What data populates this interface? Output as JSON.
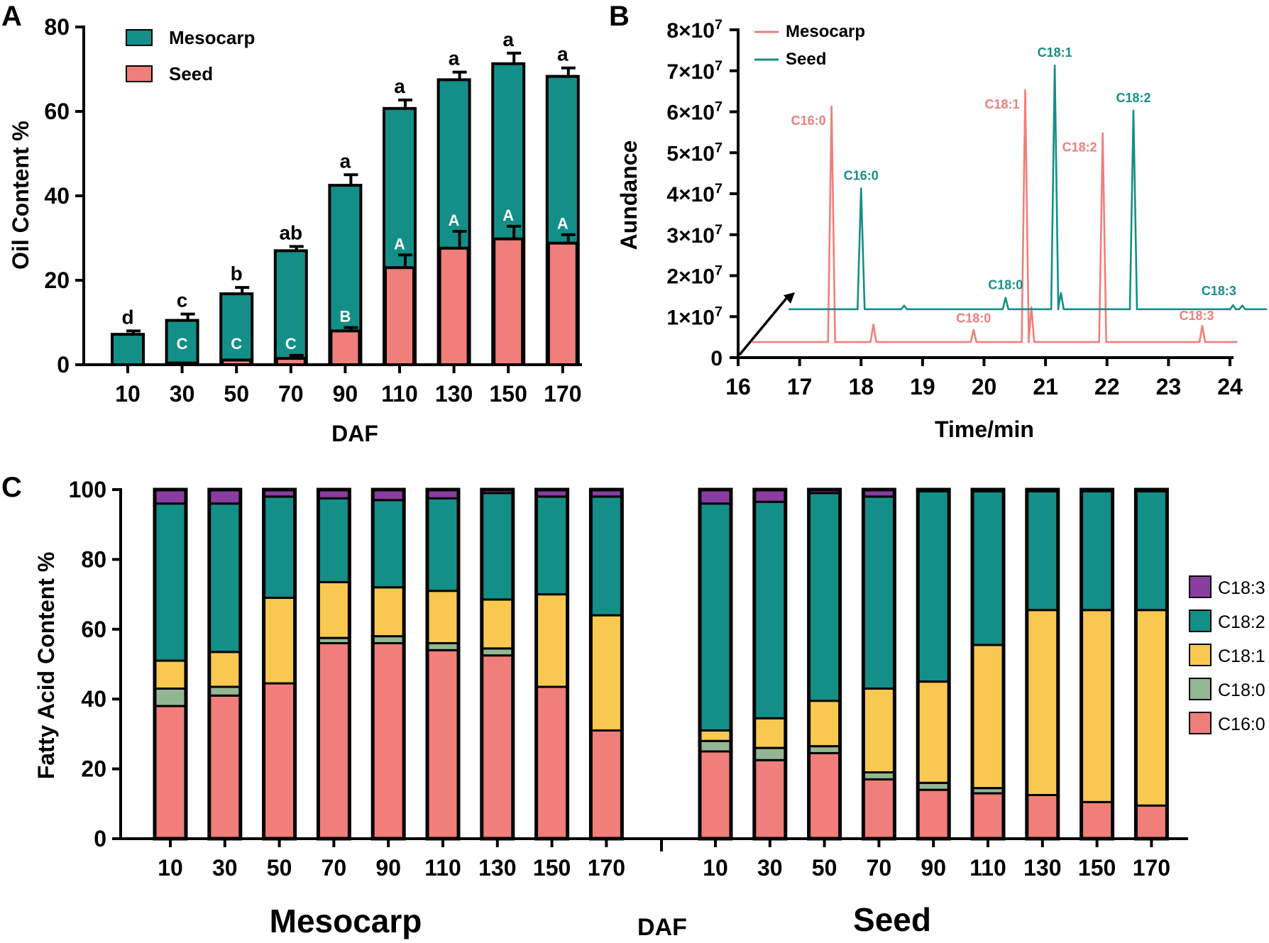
{
  "colors": {
    "mesocarp": "#138f88",
    "seed": "#f07e7b",
    "C18:3": "#8a3da0",
    "C18:2": "#138f88",
    "C18:1": "#f9c851",
    "C18:0": "#93b793",
    "C16:0": "#f07e7b",
    "outline": "#000000"
  },
  "chart_data": [
    {
      "panel": "A",
      "type": "bar",
      "title": "",
      "xlabel": "DAF",
      "ylabel": "Oil Content %",
      "ylim": [
        0,
        80
      ],
      "yticks": [
        "0",
        "20",
        "40",
        "60",
        "80"
      ],
      "categories": [
        "10",
        "30",
        "50",
        "70",
        "90",
        "110",
        "130",
        "150",
        "170"
      ],
      "legend_position": "top-left",
      "series": [
        {
          "name": "Mesocarp",
          "values": [
            7.2,
            10.5,
            16.8,
            27.0,
            42.5,
            60.7,
            67.5,
            71.3,
            68.3
          ],
          "errors": [
            0.8,
            1.5,
            1.5,
            1.0,
            2.5,
            2.0,
            1.8,
            2.5,
            2.0
          ],
          "letters": [
            "d",
            "c",
            "b",
            "ab",
            "a",
            "a",
            "a",
            "a",
            "a"
          ]
        },
        {
          "name": "Seed",
          "values": [
            0,
            0.4,
            1.1,
            1.5,
            8.0,
            23.0,
            27.6,
            29.8,
            28.8
          ],
          "errors": [
            0,
            0,
            0,
            0.7,
            0.8,
            3.0,
            4.0,
            3.0,
            2.0
          ],
          "letters": [
            "",
            "C",
            "C",
            "C",
            "B",
            "A",
            "A",
            "A",
            "A"
          ]
        }
      ]
    },
    {
      "panel": "B",
      "type": "line",
      "title": "",
      "xlabel": "Time/min",
      "ylabel": "Aundance",
      "xlim": [
        16,
        24
      ],
      "ylim": [
        0,
        80000000
      ],
      "xticks": [
        "16",
        "17",
        "18",
        "19",
        "20",
        "21",
        "22",
        "23",
        "24"
      ],
      "yticks": [
        "0",
        "1×10⁷",
        "2×10⁷",
        "3×10⁷",
        "4×10⁷",
        "5×10⁷",
        "6×10⁷",
        "7×10⁷",
        "8×10⁷"
      ],
      "legend_position": "top-left",
      "series": [
        {
          "name": "Mesocarp",
          "baseline": 3800000,
          "peaks": [
            {
              "time": 17.52,
              "height": 57500000,
              "label": "C16:0"
            },
            {
              "time": 18.2,
              "height": 4300000,
              "label": ""
            },
            {
              "time": 19.83,
              "height": 3000000,
              "label": "C18:0"
            },
            {
              "time": 20.67,
              "height": 61500000,
              "label": "C18:1"
            },
            {
              "time": 20.77,
              "height": 8500000,
              "label": ""
            },
            {
              "time": 21.93,
              "height": 51000000,
              "label": "C18:2"
            },
            {
              "time": 23.55,
              "height": 4000000,
              "label": "C18:3"
            }
          ]
        },
        {
          "name": "Seed",
          "baseline": 11800000,
          "offset_minutes": 0.42,
          "peaks": [
            {
              "time": 18.0,
              "height": 29500000,
              "label": "C16:0"
            },
            {
              "time": 18.7,
              "height": 900000,
              "label": ""
            },
            {
              "time": 20.35,
              "height": 2800000,
              "label": "C18:0"
            },
            {
              "time": 21.15,
              "height": 59500000,
              "label": "C18:1"
            },
            {
              "time": 21.25,
              "height": 4000000,
              "label": ""
            },
            {
              "time": 22.43,
              "height": 48500000,
              "label": "C18:2"
            },
            {
              "time": 24.05,
              "height": 1000000,
              "label": "C18:3"
            },
            {
              "time": 24.2,
              "height": 900000,
              "label": ""
            }
          ]
        }
      ]
    },
    {
      "panel": "C",
      "type": "bar",
      "stacked": true,
      "title": "",
      "xlabel": "DAF",
      "ylabel": "Fatty Acid Content %",
      "ylim": [
        0,
        100
      ],
      "yticks": [
        "0",
        "20",
        "40",
        "60",
        "80",
        "100"
      ],
      "groups": [
        "Mesocarp",
        "Seed"
      ],
      "categories": [
        "10",
        "30",
        "50",
        "70",
        "90",
        "110",
        "130",
        "150",
        "170"
      ],
      "stack_order": [
        "C16:0",
        "C18:0",
        "C18:1",
        "C18:2",
        "C18:3"
      ],
      "legend_position": "right",
      "legend": [
        "C18:3",
        "C18:2",
        "C18:1",
        "C18:0",
        "C16:0"
      ],
      "data": {
        "Mesocarp": [
          {
            "C16:0": 38,
            "C18:0": 5,
            "C18:1": 8,
            "C18:2": 45,
            "C18:3": 4
          },
          {
            "C16:0": 41,
            "C18:0": 2.5,
            "C18:1": 10,
            "C18:2": 42.5,
            "C18:3": 4
          },
          {
            "C16:0": 44.5,
            "C18:0": 0,
            "C18:1": 24.5,
            "C18:2": 29,
            "C18:3": 2
          },
          {
            "C16:0": 56,
            "C18:0": 1.5,
            "C18:1": 16,
            "C18:2": 24,
            "C18:3": 2.5
          },
          {
            "C16:0": 56,
            "C18:0": 2,
            "C18:1": 14,
            "C18:2": 25,
            "C18:3": 3
          },
          {
            "C16:0": 54,
            "C18:0": 2,
            "C18:1": 15,
            "C18:2": 26.5,
            "C18:3": 2.5
          },
          {
            "C16:0": 52.5,
            "C18:0": 2,
            "C18:1": 14,
            "C18:2": 30.5,
            "C18:3": 1
          },
          {
            "C16:0": 43.5,
            "C18:0": 0,
            "C18:1": 26.5,
            "C18:2": 28,
            "C18:3": 2
          },
          {
            "C16:0": 31,
            "C18:0": 0,
            "C18:1": 33,
            "C18:2": 34,
            "C18:3": 2
          }
        ],
        "Seed": [
          {
            "C16:0": 25,
            "C18:0": 3,
            "C18:1": 3,
            "C18:2": 65,
            "C18:3": 4
          },
          {
            "C16:0": 22.5,
            "C18:0": 3.5,
            "C18:1": 8.5,
            "C18:2": 62,
            "C18:3": 3.5
          },
          {
            "C16:0": 24.5,
            "C18:0": 2,
            "C18:1": 13,
            "C18:2": 59.5,
            "C18:3": 1
          },
          {
            "C16:0": 17,
            "C18:0": 2,
            "C18:1": 24,
            "C18:2": 55,
            "C18:3": 2
          },
          {
            "C16:0": 14,
            "C18:0": 2,
            "C18:1": 29,
            "C18:2": 54.5,
            "C18:3": 0.5
          },
          {
            "C16:0": 13,
            "C18:0": 1.5,
            "C18:1": 41,
            "C18:2": 44,
            "C18:3": 0.5
          },
          {
            "C16:0": 12.5,
            "C18:0": 0,
            "C18:1": 53,
            "C18:2": 34,
            "C18:3": 0.5
          },
          {
            "C16:0": 10.5,
            "C18:0": 0,
            "C18:1": 55,
            "C18:2": 34,
            "C18:3": 0.5
          },
          {
            "C16:0": 9.5,
            "C18:0": 0,
            "C18:1": 56,
            "C18:2": 34,
            "C18:3": 0.5
          }
        ]
      }
    }
  ]
}
